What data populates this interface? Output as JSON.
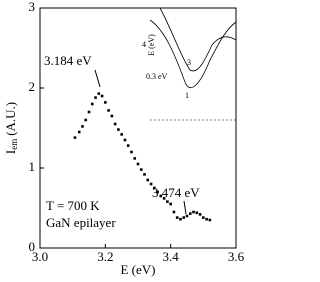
{
  "chart_data": {
    "type": "line",
    "xlabel": "E (eV)",
    "ylabel": [
      "I",
      "em",
      "(A.U.)"
    ],
    "x": [
      3.107,
      3.12,
      3.13,
      3.14,
      3.15,
      3.16,
      3.17,
      3.18,
      3.19,
      3.2,
      3.21,
      3.22,
      3.23,
      3.24,
      3.25,
      3.26,
      3.27,
      3.28,
      3.29,
      3.3,
      3.31,
      3.32,
      3.33,
      3.34,
      3.35,
      3.36,
      3.37,
      3.38,
      3.39,
      3.4,
      3.41,
      3.42,
      3.43,
      3.44,
      3.45,
      3.46,
      3.47,
      3.48,
      3.49,
      3.5,
      3.51,
      3.52
    ],
    "series": [
      {
        "color": "#000000",
        "values": [
          1.38,
          1.45,
          1.52,
          1.6,
          1.7,
          1.8,
          1.88,
          1.93,
          1.9,
          1.82,
          1.72,
          1.65,
          1.55,
          1.48,
          1.42,
          1.35,
          1.28,
          1.2,
          1.12,
          1.05,
          0.98,
          0.92,
          0.85,
          0.8,
          0.75,
          0.7,
          0.65,
          0.62,
          0.58,
          0.55,
          0.45,
          0.38,
          0.36,
          0.38,
          0.4,
          0.43,
          0.45,
          0.44,
          0.42,
          0.38,
          0.36,
          0.35
        ]
      }
    ],
    "xlim": [
      3.0,
      3.6
    ],
    "ylim": [
      0,
      3
    ],
    "xticks": [
      {
        "value": 3.0,
        "label": "3.0"
      },
      3.2,
      3.4,
      3.6
    ],
    "yticks": [
      0,
      1,
      2,
      3
    ],
    "annotations": [
      "3.184 eV",
      "3.474 eV",
      "T = 700 K",
      "GaN epilayer"
    ],
    "inset": {
      "ylabel": "E (eV)",
      "labels": [
        "0.3 eV",
        "3",
        "1",
        "4"
      ]
    }
  }
}
